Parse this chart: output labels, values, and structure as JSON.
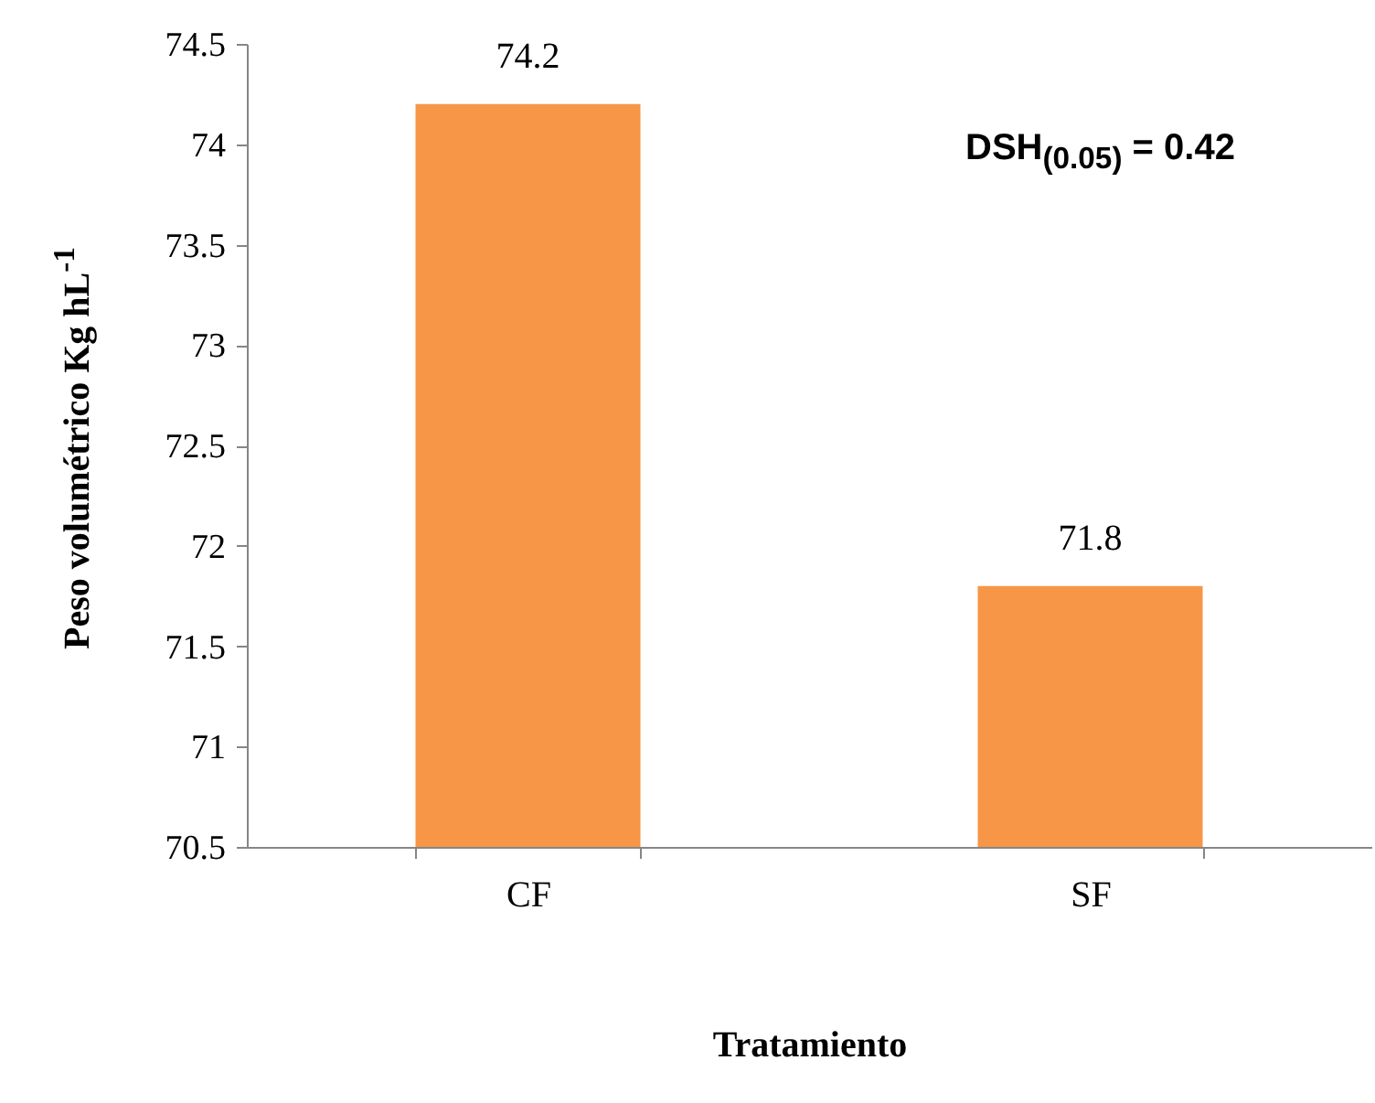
{
  "chart_data": {
    "type": "bar",
    "xlabel": "Tratamiento",
    "ylabel": "Peso volumétrico Kg hL$^{-1}$",
    "categories": [
      "CF",
      "SF"
    ],
    "values": [
      74.2,
      71.8
    ],
    "color": "#f79646",
    "ylim": [
      70.5,
      74.5
    ],
    "yticks": [
      70.5,
      71,
      71.5,
      72,
      72.5,
      73,
      73.5,
      74,
      74.5
    ],
    "data_labels": true,
    "grid": false,
    "annotations": [
      "DSH$_{(0.05)}$ = 0.42"
    ]
  }
}
